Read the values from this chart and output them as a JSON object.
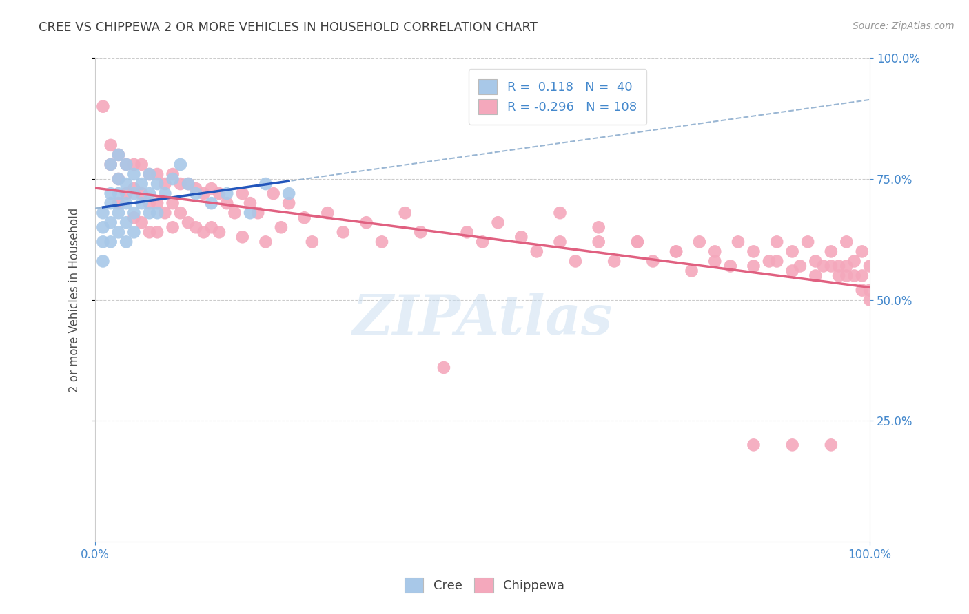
{
  "title": "CREE VS CHIPPEWA 2 OR MORE VEHICLES IN HOUSEHOLD CORRELATION CHART",
  "source_text": "Source: ZipAtlas.com",
  "ylabel": "2 or more Vehicles in Household",
  "watermark": "ZIPAtlas",
  "cree_R": 0.118,
  "cree_N": 40,
  "chippewa_R": -0.296,
  "chippewa_N": 108,
  "xlim": [
    0.0,
    1.0
  ],
  "ylim": [
    0.0,
    1.0
  ],
  "x_tick_labels": [
    "0.0%",
    "100.0%"
  ],
  "y_tick_labels": [
    "25.0%",
    "50.0%",
    "75.0%",
    "100.0%"
  ],
  "y_tick_values": [
    0.25,
    0.5,
    0.75,
    1.0
  ],
  "cree_color": "#a8c8e8",
  "chippewa_color": "#f4a8bc",
  "cree_line_color": "#2255bb",
  "chippewa_line_color": "#e06080",
  "dashed_line_color": "#88aacc",
  "background_color": "#ffffff",
  "grid_color": "#cccccc",
  "title_color": "#404040",
  "axis_label_color": "#505050",
  "tick_label_color": "#4488cc",
  "cree_scatter_x": [
    0.01,
    0.01,
    0.01,
    0.01,
    0.02,
    0.02,
    0.02,
    0.02,
    0.02,
    0.03,
    0.03,
    0.03,
    0.03,
    0.03,
    0.04,
    0.04,
    0.04,
    0.04,
    0.04,
    0.05,
    0.05,
    0.05,
    0.05,
    0.06,
    0.06,
    0.07,
    0.07,
    0.07,
    0.08,
    0.08,
    0.09,
    0.1,
    0.11,
    0.12,
    0.13,
    0.15,
    0.17,
    0.2,
    0.22,
    0.25
  ],
  "cree_scatter_y": [
    0.68,
    0.65,
    0.62,
    0.58,
    0.78,
    0.72,
    0.7,
    0.66,
    0.62,
    0.8,
    0.75,
    0.72,
    0.68,
    0.64,
    0.78,
    0.74,
    0.7,
    0.66,
    0.62,
    0.76,
    0.72,
    0.68,
    0.64,
    0.74,
    0.7,
    0.76,
    0.72,
    0.68,
    0.74,
    0.68,
    0.72,
    0.75,
    0.78,
    0.74,
    0.72,
    0.7,
    0.72,
    0.68,
    0.74,
    0.72
  ],
  "chippewa_scatter_x": [
    0.01,
    0.02,
    0.02,
    0.03,
    0.03,
    0.03,
    0.04,
    0.04,
    0.05,
    0.05,
    0.05,
    0.06,
    0.06,
    0.06,
    0.07,
    0.07,
    0.07,
    0.08,
    0.08,
    0.08,
    0.09,
    0.09,
    0.1,
    0.1,
    0.1,
    0.11,
    0.11,
    0.12,
    0.12,
    0.13,
    0.13,
    0.14,
    0.14,
    0.15,
    0.15,
    0.16,
    0.16,
    0.17,
    0.18,
    0.19,
    0.19,
    0.2,
    0.21,
    0.22,
    0.23,
    0.24,
    0.25,
    0.27,
    0.28,
    0.3,
    0.32,
    0.35,
    0.37,
    0.4,
    0.42,
    0.45,
    0.48,
    0.5,
    0.52,
    0.55,
    0.57,
    0.6,
    0.62,
    0.65,
    0.67,
    0.7,
    0.72,
    0.75,
    0.77,
    0.78,
    0.8,
    0.82,
    0.83,
    0.85,
    0.87,
    0.88,
    0.9,
    0.91,
    0.92,
    0.93,
    0.94,
    0.95,
    0.96,
    0.97,
    0.97,
    0.98,
    0.99,
    0.99,
    1.0,
    1.0,
    0.6,
    0.65,
    0.7,
    0.75,
    0.8,
    0.85,
    0.88,
    0.9,
    0.93,
    0.95,
    0.96,
    0.97,
    0.98,
    0.99,
    1.0,
    0.85,
    0.9,
    0.95
  ],
  "chippewa_scatter_y": [
    0.9,
    0.82,
    0.78,
    0.8,
    0.75,
    0.7,
    0.78,
    0.72,
    0.78,
    0.73,
    0.67,
    0.78,
    0.72,
    0.66,
    0.76,
    0.7,
    0.64,
    0.76,
    0.7,
    0.64,
    0.74,
    0.68,
    0.76,
    0.7,
    0.65,
    0.74,
    0.68,
    0.74,
    0.66,
    0.73,
    0.65,
    0.72,
    0.64,
    0.73,
    0.65,
    0.72,
    0.64,
    0.7,
    0.68,
    0.72,
    0.63,
    0.7,
    0.68,
    0.62,
    0.72,
    0.65,
    0.7,
    0.67,
    0.62,
    0.68,
    0.64,
    0.66,
    0.62,
    0.68,
    0.64,
    0.36,
    0.64,
    0.62,
    0.66,
    0.63,
    0.6,
    0.62,
    0.58,
    0.62,
    0.58,
    0.62,
    0.58,
    0.6,
    0.56,
    0.62,
    0.6,
    0.57,
    0.62,
    0.6,
    0.58,
    0.62,
    0.6,
    0.57,
    0.62,
    0.58,
    0.57,
    0.6,
    0.57,
    0.55,
    0.62,
    0.58,
    0.55,
    0.6,
    0.57,
    0.52,
    0.68,
    0.65,
    0.62,
    0.6,
    0.58,
    0.57,
    0.58,
    0.56,
    0.55,
    0.57,
    0.55,
    0.57,
    0.55,
    0.52,
    0.5,
    0.2,
    0.2,
    0.2
  ]
}
